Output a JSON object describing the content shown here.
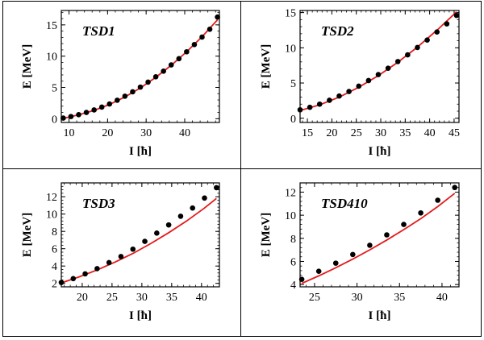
{
  "chart_data": [
    {
      "type": "scatter",
      "title": "TSD1",
      "xlabel": "I [ħ]",
      "ylabel": "E [MeV]",
      "xlim": [
        8,
        49
      ],
      "ylim": [
        -0.6,
        17.3
      ],
      "xticks": [
        10,
        20,
        30,
        40
      ],
      "yticks": [
        0,
        5,
        10,
        15
      ],
      "xtick_labels": [
        "10",
        "20",
        "30",
        "40"
      ],
      "ytick_labels": [
        "0",
        "5",
        "10",
        "15"
      ],
      "grid": false,
      "series": [
        {
          "kind": "points",
          "color": "#000000",
          "x": [
            8.5,
            10.5,
            12.5,
            14.5,
            16.5,
            18.5,
            20.5,
            22.5,
            24.5,
            26.5,
            28.5,
            30.5,
            32.5,
            34.5,
            36.5,
            38.5,
            40.5,
            42.5,
            44.5,
            46.5,
            48.5
          ],
          "y": [
            0.1,
            0.35,
            0.65,
            1.0,
            1.4,
            1.85,
            2.35,
            2.95,
            3.6,
            4.3,
            5.05,
            5.85,
            6.7,
            7.6,
            8.6,
            9.6,
            10.7,
            11.85,
            13.05,
            14.3,
            16.25
          ]
        },
        {
          "kind": "fit",
          "color": "#e41a1c",
          "x": [
            8.5,
            12.5,
            16.5,
            20.5,
            24.5,
            28.5,
            32.5,
            36.5,
            40.5,
            44.5,
            48.5
          ],
          "y": [
            0.05,
            0.62,
            1.33,
            2.28,
            3.48,
            4.92,
            6.61,
            8.54,
            10.7,
            13.1,
            15.8
          ]
        }
      ]
    },
    {
      "type": "scatter",
      "title": "TSD2",
      "xlabel": "I [ħ]",
      "ylabel": "E [MeV]",
      "xlim": [
        13.5,
        46
      ],
      "ylim": [
        -0.6,
        15.3
      ],
      "xticks": [
        15,
        20,
        25,
        30,
        35,
        40,
        45
      ],
      "yticks": [
        0,
        5,
        10,
        15
      ],
      "xtick_labels": [
        "15",
        "20",
        "25",
        "30",
        "35",
        "40",
        "45"
      ],
      "ytick_labels": [
        "0",
        "5",
        "10",
        "15"
      ],
      "grid": false,
      "series": [
        {
          "kind": "points",
          "color": "#000000",
          "x": [
            13.5,
            15.5,
            17.5,
            19.5,
            21.5,
            23.5,
            25.5,
            27.5,
            29.5,
            31.5,
            33.5,
            35.5,
            37.5,
            39.5,
            41.5,
            43.5,
            45.5
          ],
          "y": [
            1.2,
            1.55,
            2.0,
            2.55,
            3.15,
            3.8,
            4.55,
            5.35,
            6.2,
            7.1,
            8.05,
            9.0,
            10.05,
            11.1,
            12.25,
            13.4,
            14.6
          ]
        },
        {
          "kind": "fit",
          "color": "#e41a1c",
          "x": [
            13.5,
            17.5,
            21.5,
            25.5,
            29.5,
            33.5,
            37.5,
            41.5,
            45.5
          ],
          "y": [
            1.1,
            1.9,
            3.0,
            4.4,
            6.05,
            7.95,
            10.1,
            12.5,
            15.1
          ]
        }
      ]
    },
    {
      "type": "scatter",
      "title": "TSD3",
      "xlabel": "I [ħ]",
      "ylabel": "E [MeV]",
      "xlim": [
        16.5,
        43
      ],
      "ylim": [
        1.6,
        13.6
      ],
      "xticks": [
        20,
        25,
        30,
        35,
        40
      ],
      "yticks": [
        2,
        4,
        6,
        8,
        10,
        12
      ],
      "xtick_labels": [
        "20",
        "25",
        "30",
        "35",
        "40"
      ],
      "ytick_labels": [
        "2",
        "4",
        "6",
        "8",
        "10",
        "12"
      ],
      "grid": false,
      "series": [
        {
          "kind": "points",
          "color": "#000000",
          "x": [
            16.5,
            18.5,
            20.5,
            22.5,
            24.5,
            26.5,
            28.5,
            30.5,
            32.5,
            34.5,
            36.5,
            38.5,
            40.5,
            42.5
          ],
          "y": [
            2.1,
            2.55,
            3.1,
            3.7,
            4.4,
            5.1,
            5.95,
            6.85,
            7.8,
            8.75,
            9.75,
            10.7,
            11.85,
            13.05
          ]
        },
        {
          "kind": "fit",
          "color": "#e41a1c",
          "x": [
            16.5,
            19.5,
            22.5,
            25.5,
            28.5,
            31.5,
            34.5,
            37.5,
            40.5,
            42.5
          ],
          "y": [
            2.05,
            2.75,
            3.55,
            4.45,
            5.45,
            6.6,
            7.85,
            9.2,
            10.7,
            11.8
          ]
        }
      ]
    },
    {
      "type": "scatter",
      "title": "TSD410",
      "xlabel": "I [ħ]",
      "ylabel": "E [MeV]",
      "xlim": [
        23.3,
        42
      ],
      "ylim": [
        3.8,
        12.8
      ],
      "xticks": [
        25,
        30,
        35,
        40
      ],
      "yticks": [
        4,
        6,
        8,
        10,
        12
      ],
      "xtick_labels": [
        "25",
        "30",
        "35",
        "40"
      ],
      "ytick_labels": [
        "4",
        "6",
        "8",
        "10",
        "12"
      ],
      "grid": false,
      "series": [
        {
          "kind": "points",
          "color": "#000000",
          "x": [
            23.5,
            25.5,
            27.5,
            29.5,
            31.5,
            33.5,
            35.5,
            37.5,
            39.5,
            41.5
          ],
          "y": [
            4.45,
            5.15,
            5.85,
            6.6,
            7.4,
            8.3,
            9.2,
            10.2,
            11.3,
            12.4
          ]
        },
        {
          "kind": "fit",
          "color": "#e41a1c",
          "x": [
            23.5,
            25.5,
            27.5,
            29.5,
            31.5,
            33.5,
            35.5,
            37.5,
            39.5,
            41.5
          ],
          "y": [
            4.1,
            4.75,
            5.45,
            6.2,
            7.0,
            7.85,
            8.75,
            9.7,
            10.75,
            11.9
          ]
        }
      ]
    }
  ]
}
